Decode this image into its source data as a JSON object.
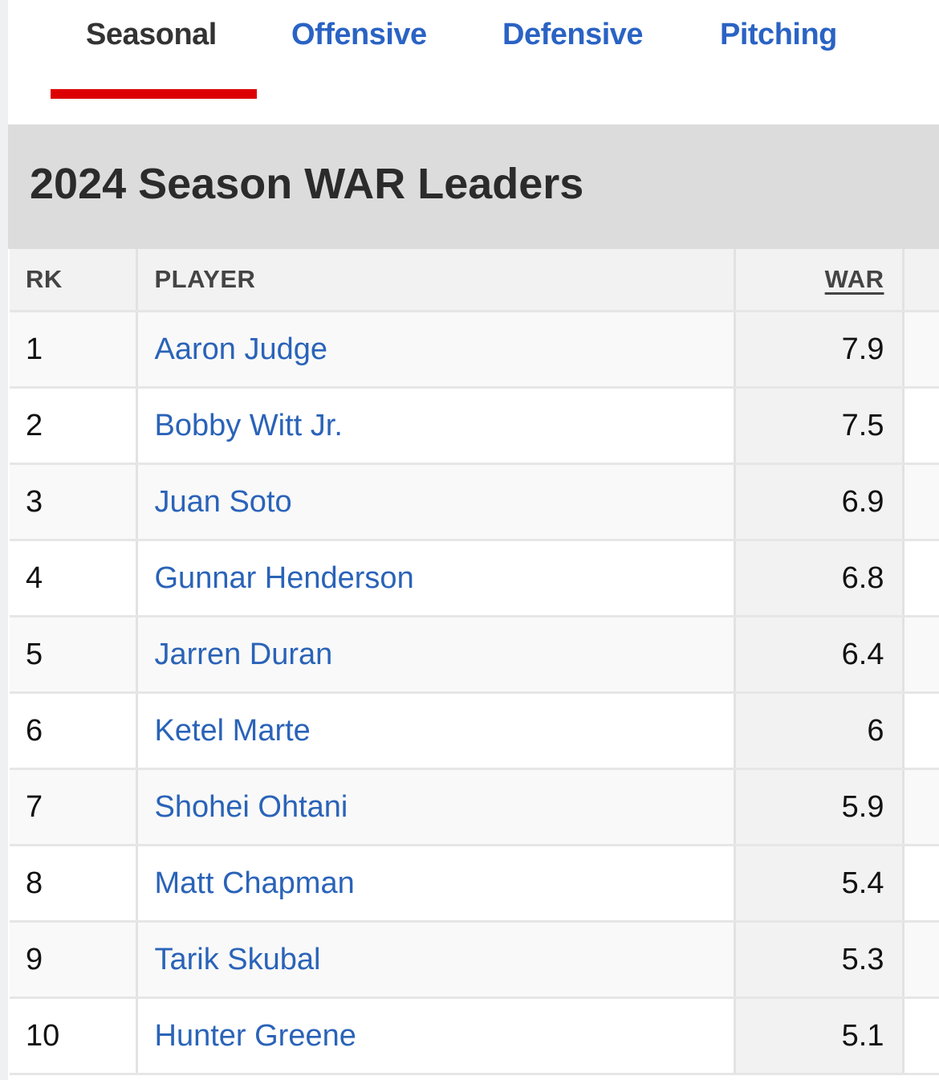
{
  "tabs": [
    {
      "label": "Seasonal",
      "active": true
    },
    {
      "label": "Offensive",
      "active": false
    },
    {
      "label": "Defensive",
      "active": false
    },
    {
      "label": "Pitching",
      "active": false
    }
  ],
  "colors": {
    "accent": "#dd0000",
    "link": "#2a63b8"
  },
  "title": "2024 Season WAR Leaders",
  "table": {
    "headers": {
      "rk": "RK",
      "player": "PLAYER",
      "war": "WAR"
    },
    "sorted_by": "WAR",
    "rows": [
      {
        "rk": "1",
        "player": "Aaron Judge",
        "war": "7.9"
      },
      {
        "rk": "2",
        "player": "Bobby Witt Jr.",
        "war": "7.5"
      },
      {
        "rk": "3",
        "player": "Juan Soto",
        "war": "6.9"
      },
      {
        "rk": "4",
        "player": "Gunnar Henderson",
        "war": "6.8"
      },
      {
        "rk": "5",
        "player": "Jarren Duran",
        "war": "6.4"
      },
      {
        "rk": "6",
        "player": "Ketel Marte",
        "war": "6"
      },
      {
        "rk": "7",
        "player": "Shohei Ohtani",
        "war": "5.9"
      },
      {
        "rk": "8",
        "player": "Matt Chapman",
        "war": "5.4"
      },
      {
        "rk": "9",
        "player": "Tarik Skubal",
        "war": "5.3"
      },
      {
        "rk": "10",
        "player": "Hunter Greene",
        "war": "5.1"
      }
    ]
  }
}
